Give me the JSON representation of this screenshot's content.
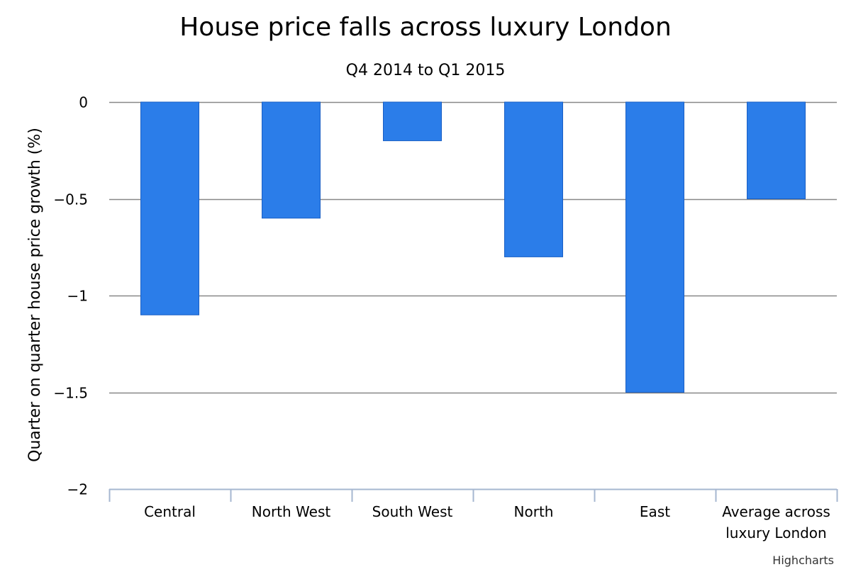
{
  "chart_data": {
    "type": "bar",
    "title": "House price falls across luxury London",
    "subtitle": "Q4 2014 to Q1 2015",
    "xlabel": "",
    "ylabel": "Quarter on quarter house price growth (%)",
    "categories": [
      "Central",
      "North West",
      "South West",
      "North",
      "East",
      "Average across luxury London"
    ],
    "category_lines": [
      [
        "Central"
      ],
      [
        "North West"
      ],
      [
        "South West"
      ],
      [
        "North"
      ],
      [
        "East"
      ],
      [
        "Average across",
        "luxury London"
      ]
    ],
    "values": [
      -1.1,
      -0.6,
      -0.2,
      -0.8,
      -1.5,
      -0.5
    ],
    "ylim": [
      -2,
      0
    ],
    "yticks": [
      0,
      -0.5,
      -1,
      -1.5,
      -2
    ],
    "ytick_labels": [
      "0",
      "−0.5",
      "−1",
      "−1.5",
      "−2"
    ],
    "grid": true,
    "legend": "none",
    "colors": {
      "bar": "#2b7de9",
      "bar_stroke": "#1a5fc4",
      "grid": "#888888",
      "axis": "#a6b7d0"
    },
    "credits": "Highcharts"
  }
}
